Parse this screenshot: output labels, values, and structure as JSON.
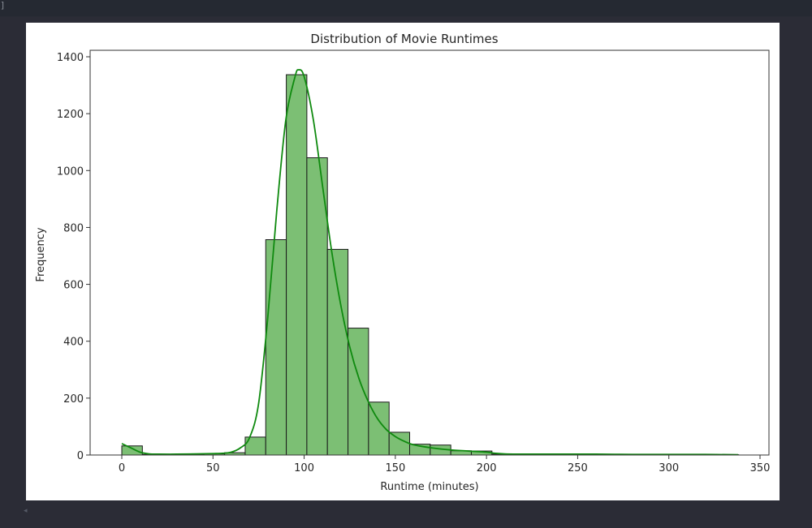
{
  "window": {
    "corner_glyph": "]",
    "scroll_left_icon": "◂"
  },
  "chart_data": {
    "type": "bar",
    "subtype": "histogram_with_kde",
    "title": "Distribution of Movie Runtimes",
    "xlabel": "Runtime (minutes)",
    "ylabel": "Frequency",
    "xlim": [
      -21,
      356
    ],
    "ylim": [
      0,
      1420
    ],
    "xticks": [
      0,
      50,
      100,
      150,
      200,
      250,
      300,
      350
    ],
    "yticks": [
      0,
      200,
      400,
      600,
      800,
      1000,
      1200,
      1400
    ],
    "grid": false,
    "legend": null,
    "bar_color": "#7cbf74",
    "bar_edge_color": "#1a1a1a",
    "kde_color": "#0f8a0f",
    "bin_width": 11.28,
    "bins": [
      {
        "start": 0.0,
        "end": 11.28,
        "count": 32
      },
      {
        "start": 11.28,
        "end": 22.55,
        "count": 2
      },
      {
        "start": 22.55,
        "end": 33.83,
        "count": 2
      },
      {
        "start": 33.83,
        "end": 45.1,
        "count": 3
      },
      {
        "start": 45.1,
        "end": 56.38,
        "count": 4
      },
      {
        "start": 56.38,
        "end": 67.66,
        "count": 8
      },
      {
        "start": 67.66,
        "end": 78.93,
        "count": 63
      },
      {
        "start": 78.93,
        "end": 90.21,
        "count": 757
      },
      {
        "start": 90.21,
        "end": 101.48,
        "count": 1337
      },
      {
        "start": 101.48,
        "end": 112.76,
        "count": 1045
      },
      {
        "start": 112.76,
        "end": 124.04,
        "count": 723
      },
      {
        "start": 124.04,
        "end": 135.31,
        "count": 446
      },
      {
        "start": 135.31,
        "end": 146.59,
        "count": 186
      },
      {
        "start": 146.59,
        "end": 157.86,
        "count": 80
      },
      {
        "start": 157.86,
        "end": 169.14,
        "count": 38
      },
      {
        "start": 169.14,
        "end": 180.42,
        "count": 35
      },
      {
        "start": 180.42,
        "end": 191.69,
        "count": 15
      },
      {
        "start": 191.69,
        "end": 202.97,
        "count": 14
      },
      {
        "start": 202.97,
        "end": 214.24,
        "count": 3
      },
      {
        "start": 214.24,
        "end": 225.52,
        "count": 2
      },
      {
        "start": 225.52,
        "end": 236.8,
        "count": 1
      },
      {
        "start": 236.8,
        "end": 248.07,
        "count": 2
      },
      {
        "start": 248.07,
        "end": 259.35,
        "count": 1
      },
      {
        "start": 259.35,
        "end": 270.62,
        "count": 1
      },
      {
        "start": 270.62,
        "end": 281.9,
        "count": 1
      },
      {
        "start": 281.9,
        "end": 293.18,
        "count": 1
      },
      {
        "start": 293.18,
        "end": 304.45,
        "count": 0
      },
      {
        "start": 304.45,
        "end": 315.73,
        "count": 1
      },
      {
        "start": 315.73,
        "end": 327.0,
        "count": 0
      },
      {
        "start": 327.0,
        "end": 338.28,
        "count": 1
      }
    ],
    "kde": {
      "x": [
        0,
        5,
        10,
        15,
        20,
        30,
        40,
        50,
        55,
        60,
        65,
        70,
        75,
        80,
        85,
        90,
        95,
        97,
        100,
        105,
        110,
        115,
        120,
        125,
        130,
        135,
        140,
        145,
        150,
        155,
        160,
        170,
        180,
        190,
        200,
        205,
        210,
        220,
        240,
        260,
        280,
        300,
        320,
        338
      ],
      "y": [
        40,
        25,
        10,
        4,
        3,
        3,
        4,
        5,
        6,
        10,
        25,
        60,
        180,
        480,
        860,
        1180,
        1330,
        1354,
        1330,
        1180,
        950,
        720,
        530,
        380,
        270,
        190,
        130,
        90,
        65,
        48,
        36,
        25,
        18,
        14,
        10,
        6,
        4,
        3,
        3,
        3,
        2,
        2,
        2,
        1
      ]
    }
  }
}
